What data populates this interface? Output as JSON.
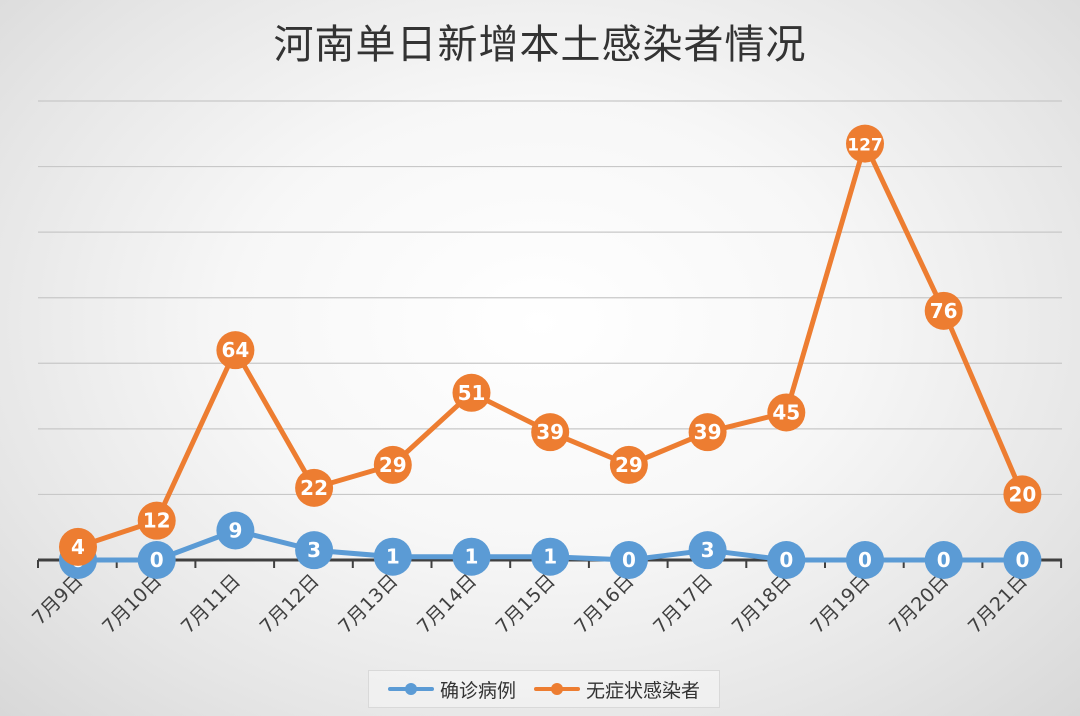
{
  "title": "河南单日新增本土感染者情况",
  "colors": {
    "confirmed": "#5b9bd5",
    "asymptomatic": "#ed7d31",
    "grid": "#c8c8c8",
    "axis": "#404040",
    "label_text": "#ffffff",
    "tick_text": "#404040"
  },
  "legend": {
    "placement": "bottom-center",
    "items": [
      {
        "name": "确诊病例",
        "color_key": "confirmed"
      },
      {
        "name": "无症状感染者",
        "color_key": "asymptomatic"
      }
    ]
  },
  "chart_data": {
    "type": "line",
    "title": "河南单日新增本土感染者情况",
    "xlabel": "",
    "ylabel": "",
    "categories": [
      "7月9日",
      "7月10日",
      "7月11日",
      "7月12日",
      "7月13日",
      "7月14日",
      "7月15日",
      "7月16日",
      "7月17日",
      "7月18日",
      "7月19日",
      "7月20日",
      "7月21日"
    ],
    "ylim": [
      0,
      140
    ],
    "grid": true,
    "series": [
      {
        "name": "确诊病例",
        "values": [
          0,
          0,
          9,
          3,
          1,
          1,
          1,
          0,
          3,
          0,
          0,
          0,
          0
        ]
      },
      {
        "name": "无症状感染者",
        "values": [
          4,
          12,
          64,
          22,
          29,
          51,
          39,
          29,
          39,
          45,
          127,
          76,
          20
        ]
      }
    ]
  }
}
